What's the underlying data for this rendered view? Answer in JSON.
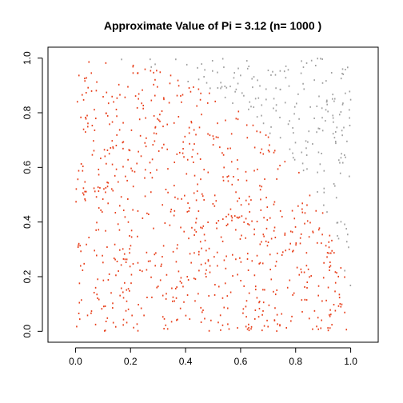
{
  "chart_data": {
    "type": "scatter",
    "title": "Approximate Value of Pi = 3.12  (n= 1000 )",
    "xlabel": "",
    "ylabel": "",
    "xlim": [
      -0.1,
      1.1
    ],
    "ylim": [
      -0.04,
      1.04
    ],
    "x_ticks": [
      "0.0",
      "0.2",
      "0.4",
      "0.6",
      "0.8",
      "1.0"
    ],
    "y_ticks": [
      "0.0",
      "0.2",
      "0.4",
      "0.6",
      "0.8",
      "1.0"
    ],
    "n": 1000,
    "grid": false,
    "legend": "none",
    "series": [
      {
        "color": "#e8401c"
      },
      {
        "color": "#a0a0a0"
      }
    ]
  }
}
